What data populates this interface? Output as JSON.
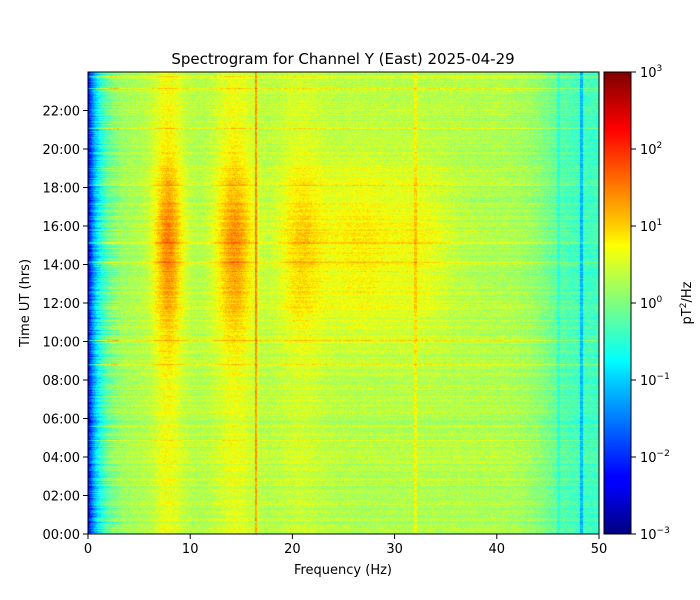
{
  "chart_data": {
    "type": "heatmap",
    "title": "Spectrogram for Channel Y (East) 2025-04-29",
    "xlabel": "Frequency (Hz)",
    "ylabel": "Time UT (hrs)",
    "xlim": [
      0,
      50
    ],
    "ylim": [
      0,
      24
    ],
    "x_ticks": [
      "0",
      "10",
      "20",
      "30",
      "40",
      "50"
    ],
    "x_tick_values": [
      0,
      10,
      20,
      30,
      40,
      50
    ],
    "y_ticks": [
      "00:00",
      "02:00",
      "04:00",
      "06:00",
      "08:00",
      "10:00",
      "12:00",
      "14:00",
      "16:00",
      "18:00",
      "20:00",
      "22:00"
    ],
    "y_tick_values": [
      0,
      2,
      4,
      6,
      8,
      10,
      12,
      14,
      16,
      18,
      20,
      22
    ],
    "colormap": "jet",
    "color_scale": "log",
    "colorbar": {
      "label_base": "pT",
      "label_sup": "2",
      "label_rest": "/Hz",
      "min": 0.001,
      "max": 1000,
      "ticks": [
        {
          "value": 0.001,
          "base": "10",
          "exp": "−3"
        },
        {
          "value": 0.01,
          "base": "10",
          "exp": "−2"
        },
        {
          "value": 0.1,
          "base": "10",
          "exp": "−1"
        },
        {
          "value": 1,
          "base": "10",
          "exp": "0"
        },
        {
          "value": 10,
          "base": "10",
          "exp": "1"
        },
        {
          "value": 100,
          "base": "10",
          "exp": "2"
        },
        {
          "value": 1000,
          "base": "10",
          "exp": "3"
        }
      ]
    },
    "features": {
      "schumann_resonance_hz": [
        7.8,
        14.3,
        20.8,
        27,
        33
      ],
      "line_hz": [
        16.4,
        32,
        46,
        48.2
      ],
      "active_hours": [
        12,
        18
      ]
    }
  }
}
